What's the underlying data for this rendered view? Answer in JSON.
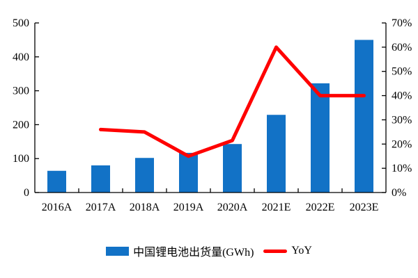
{
  "chart_data": {
    "type": "bar",
    "subtype": "bar+line dual axis",
    "title": "",
    "categories": [
      "2016A",
      "2017A",
      "2018A",
      "2019A",
      "2020A",
      "2021E",
      "2022E",
      "2023E"
    ],
    "series": [
      {
        "name": "中国锂电池出货量(GWh)",
        "type": "bar",
        "axis": "left",
        "color": "#1272C6",
        "values": [
          64,
          80,
          102,
          117,
          143,
          229,
          322,
          450
        ]
      },
      {
        "name": "YoY",
        "type": "line",
        "axis": "right",
        "color": "#FF0000",
        "values": [
          null,
          26,
          25,
          15,
          21.5,
          60,
          40,
          40
        ]
      }
    ],
    "left_axis": {
      "min": 0,
      "max": 500,
      "step": 100,
      "tick_labels": [
        "0",
        "100",
        "200",
        "300",
        "400",
        "500"
      ]
    },
    "right_axis": {
      "min": 0,
      "max": 70,
      "step": 10,
      "tick_labels": [
        "0%",
        "10%",
        "20%",
        "30%",
        "40%",
        "50%",
        "60%",
        "70%"
      ]
    },
    "grid": false,
    "legend_position": "bottom",
    "xlabel": "",
    "ylabel": ""
  },
  "legend": {
    "bar_label": "中国锂电池出货量(GWh)",
    "line_label": "YoY"
  },
  "colors": {
    "bar": "#1272C6",
    "line": "#FF0000",
    "axis": "#000000",
    "background": "#FFFFFF"
  }
}
